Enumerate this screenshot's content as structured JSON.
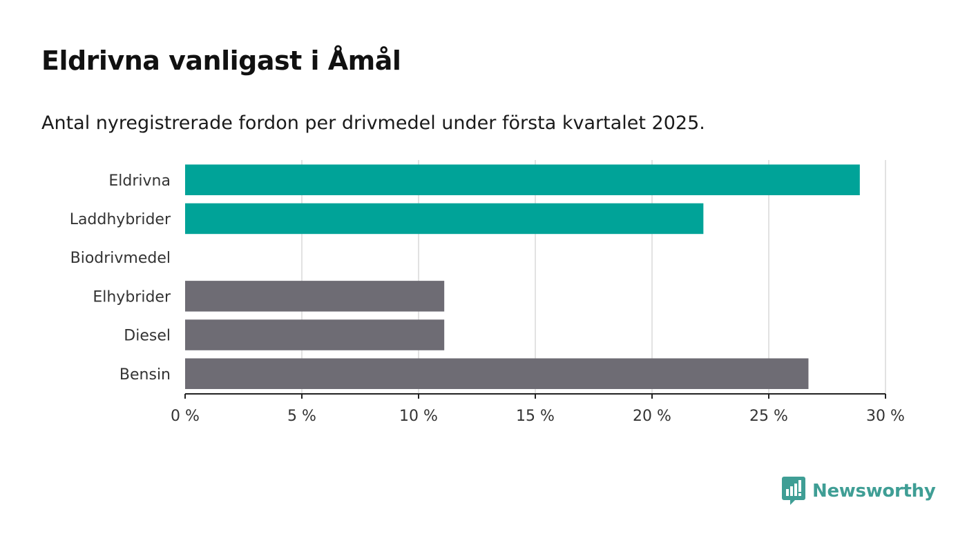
{
  "title": "Eldrivna vanligast i Åmål",
  "subtitle": "Antal nyregistrerade fordon per drivmedel under första kvartalet 2025.",
  "brand": {
    "name": "Newsworthy",
    "color": "#3f9e95"
  },
  "colors": {
    "highlight": "#00a398",
    "other": "#6e6c74",
    "grid": "#d9d9d9",
    "axis": "#222222"
  },
  "chart_data": {
    "type": "bar",
    "orientation": "horizontal",
    "categories": [
      "Eldrivna",
      "Laddhybrider",
      "Biodrivmedel",
      "Elhybrider",
      "Diesel",
      "Bensin"
    ],
    "values": [
      28.9,
      22.2,
      0,
      11.1,
      11.1,
      26.7
    ],
    "bar_colors": [
      "highlight",
      "highlight",
      "highlight",
      "other",
      "other",
      "other"
    ],
    "xlim": [
      0,
      30
    ],
    "ticks": [
      0,
      5,
      10,
      15,
      20,
      25,
      30
    ],
    "tick_labels": [
      "0 %",
      "5 %",
      "10 %",
      "15 %",
      "20 %",
      "25 %",
      "30 %"
    ],
    "grid": true,
    "legend": "none"
  }
}
